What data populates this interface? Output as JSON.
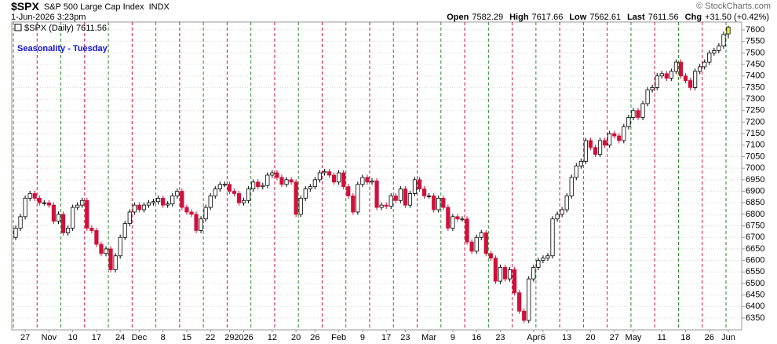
{
  "header": {
    "symbol": "$SPX",
    "name": "S&P 500 Large Cap Index",
    "exchange": "INDX",
    "timestamp": "1-Jun-2026 3:23pm",
    "quote": [
      {
        "label": "Open",
        "value": "7582.29"
      },
      {
        "label": "High",
        "value": "7617.66"
      },
      {
        "label": "Low",
        "value": "7562.61"
      },
      {
        "label": "Last",
        "value": "7611.56"
      },
      {
        "label": "Chg",
        "value": "+31.50 (+0.42%)"
      }
    ],
    "credit": "© StockCharts.com"
  },
  "chart_data": {
    "type": "candlestick",
    "title": "Seasonality - Tuesday",
    "legend": "$SPX (Daily) 7611.56",
    "categories": [
      null,
      null,
      "27",
      null,
      null,
      null,
      null,
      "Nov",
      null,
      null,
      null,
      null,
      "10",
      null,
      null,
      null,
      null,
      "17",
      null,
      null,
      null,
      null,
      "24",
      null,
      null,
      null,
      "Dec",
      null,
      null,
      null,
      null,
      "8",
      null,
      null,
      null,
      null,
      "15",
      null,
      null,
      null,
      null,
      "22",
      null,
      null,
      null,
      "29",
      null,
      null,
      "2026",
      null,
      null,
      null,
      null,
      null,
      "12",
      null,
      null,
      null,
      null,
      "20",
      null,
      null,
      null,
      "26",
      null,
      null,
      null,
      null,
      "Feb",
      null,
      null,
      null,
      null,
      "9",
      null,
      null,
      null,
      null,
      "17",
      null,
      null,
      null,
      "23",
      null,
      null,
      null,
      null,
      "Mar",
      null,
      null,
      null,
      null,
      "9",
      null,
      null,
      null,
      null,
      "16",
      null,
      null,
      null,
      null,
      "23",
      null,
      null,
      null,
      null,
      null,
      null,
      "Apr",
      null,
      "6",
      null,
      null,
      null,
      null,
      "13",
      null,
      null,
      null,
      null,
      "20",
      null,
      null,
      null,
      null,
      "27",
      null,
      null,
      null,
      "May",
      null,
      null,
      null,
      null,
      null,
      "11",
      null,
      null,
      null,
      null,
      "18",
      null,
      null,
      null,
      null,
      "26",
      null,
      null,
      null,
      "Jun"
    ],
    "open": [
      6700,
      6740,
      6790,
      6870,
      6890,
      6870,
      6850,
      6850,
      6840,
      6770,
      6800,
      6720,
      6740,
      6830,
      6840,
      6860,
      6740,
      6730,
      6670,
      6630,
      6650,
      6560,
      6620,
      6700,
      6760,
      6810,
      6840,
      6820,
      6840,
      6850,
      6855,
      6870,
      6840,
      6845,
      6880,
      6900,
      6830,
      6810,
      6800,
      6730,
      6780,
      6830,
      6880,
      6910,
      6930,
      6930,
      6900,
      6890,
      6850,
      6860,
      6910,
      6940,
      6920,
      6925,
      6970,
      6980,
      6960,
      6930,
      6950,
      6940,
      6800,
      6870,
      6910,
      6920,
      6950,
      6980,
      6985,
      6970,
      6940,
      6980,
      6920,
      6880,
      6810,
      6930,
      6960,
      6940,
      6945,
      6830,
      6840,
      6835,
      6880,
      6860,
      6910,
      6840,
      6890,
      6950,
      6910,
      6880,
      6880,
      6820,
      6870,
      6830,
      6740,
      6790,
      6780,
      6780,
      6680,
      6640,
      6700,
      6720,
      6630,
      6610,
      6510,
      6570,
      6520,
      6560,
      6460,
      6380,
      6340,
      6520,
      6570,
      6600,
      6610,
      6620,
      6780,
      6800,
      6820,
      6880,
      6960,
      7010,
      7030,
      7120,
      7090,
      7060,
      7120,
      7100,
      7150,
      7140,
      7120,
      7180,
      7220,
      7250,
      7220,
      7280,
      7340,
      7350,
      7400,
      7410,
      7390,
      7420,
      7460,
      7400,
      7380,
      7350,
      7420,
      7440,
      7460,
      7500,
      7510,
      7530,
      7582.29
    ],
    "high": [
      6752,
      6802,
      6882,
      6902,
      6902,
      6882,
      6862,
      6862,
      6852,
      6812,
      6812,
      6752,
      6842,
      6852,
      6872,
      6872,
      6752,
      6742,
      6682,
      6662,
      6662,
      6632,
      6712,
      6772,
      6822,
      6852,
      6852,
      6852,
      6862,
      6867,
      6882,
      6882,
      6857,
      6892,
      6912,
      6912,
      6842,
      6822,
      6812,
      6792,
      6842,
      6892,
      6922,
      6942,
      6942,
      6942,
      6912,
      6902,
      6872,
      6922,
      6952,
      6952,
      6937,
      6982,
      6992,
      6992,
      6972,
      6962,
      6962,
      6952,
      6882,
      6922,
      6932,
      6962,
      6992,
      6997,
      6997,
      6982,
      6992,
      6992,
      6932,
      6892,
      6942,
      6972,
      6972,
      6957,
      6957,
      6852,
      6852,
      6892,
      6892,
      6922,
      6922,
      6902,
      6962,
      6962,
      6922,
      6892,
      6892,
      6882,
      6882,
      6842,
      6802,
      6802,
      6792,
      6792,
      6692,
      6712,
      6732,
      6732,
      6642,
      6622,
      6582,
      6582,
      6572,
      6572,
      6472,
      6392,
      6532,
      6582,
      6612,
      6622,
      6632,
      6792,
      6812,
      6832,
      6892,
      6972,
      7022,
      7042,
      7132,
      7132,
      7102,
      7132,
      7132,
      7162,
      7162,
      7152,
      7192,
      7232,
      7262,
      7262,
      7292,
      7352,
      7362,
      7412,
      7422,
      7422,
      7432,
      7472,
      7472,
      7412,
      7392,
      7432,
      7452,
      7472,
      7512,
      7522,
      7542,
      7592,
      7617.66
    ],
    "low": [
      6688,
      6728,
      6778,
      6858,
      6858,
      6838,
      6838,
      6828,
      6758,
      6758,
      6708,
      6708,
      6728,
      6818,
      6828,
      6728,
      6718,
      6658,
      6618,
      6618,
      6548,
      6548,
      6608,
      6688,
      6748,
      6798,
      6808,
      6808,
      6828,
      6838,
      6843,
      6828,
      6828,
      6833,
      6868,
      6818,
      6798,
      6788,
      6718,
      6718,
      6768,
      6818,
      6868,
      6898,
      6918,
      6888,
      6878,
      6838,
      6838,
      6848,
      6898,
      6908,
      6908,
      6913,
      6958,
      6948,
      6918,
      6918,
      6928,
      6788,
      6788,
      6858,
      6898,
      6908,
      6938,
      6968,
      6958,
      6928,
      6928,
      6908,
      6868,
      6798,
      6798,
      6918,
      6928,
      6928,
      6818,
      6818,
      6823,
      6823,
      6848,
      6848,
      6828,
      6828,
      6878,
      6898,
      6868,
      6868,
      6808,
      6808,
      6818,
      6728,
      6728,
      6768,
      6768,
      6668,
      6628,
      6628,
      6688,
      6618,
      6598,
      6498,
      6498,
      6508,
      6508,
      6448,
      6368,
      6328,
      6328,
      6508,
      6558,
      6588,
      6598,
      6608,
      6768,
      6788,
      6808,
      6868,
      6948,
      6998,
      7018,
      7078,
      7048,
      7048,
      7088,
      7088,
      7128,
      7108,
      7108,
      7168,
      7208,
      7208,
      7208,
      7268,
      7328,
      7338,
      7388,
      7378,
      7378,
      7408,
      7388,
      7368,
      7338,
      7338,
      7408,
      7428,
      7448,
      7488,
      7498,
      7518,
      7562.61
    ],
    "close": [
      6740,
      6790,
      6870,
      6890,
      6870,
      6850,
      6850,
      6840,
      6770,
      6800,
      6720,
      6740,
      6830,
      6840,
      6860,
      6740,
      6730,
      6670,
      6630,
      6650,
      6560,
      6620,
      6700,
      6760,
      6810,
      6840,
      6820,
      6840,
      6850,
      6855,
      6870,
      6840,
      6845,
      6880,
      6900,
      6830,
      6810,
      6800,
      6730,
      6780,
      6830,
      6880,
      6910,
      6930,
      6930,
      6900,
      6890,
      6850,
      6860,
      6910,
      6940,
      6920,
      6925,
      6970,
      6980,
      6960,
      6930,
      6950,
      6940,
      6800,
      6870,
      6910,
      6920,
      6950,
      6980,
      6985,
      6970,
      6940,
      6980,
      6920,
      6880,
      6810,
      6930,
      6960,
      6940,
      6945,
      6830,
      6840,
      6835,
      6880,
      6860,
      6910,
      6840,
      6890,
      6950,
      6910,
      6880,
      6880,
      6820,
      6870,
      6830,
      6740,
      6790,
      6780,
      6780,
      6680,
      6640,
      6700,
      6720,
      6630,
      6610,
      6510,
      6570,
      6520,
      6560,
      6460,
      6380,
      6340,
      6520,
      6570,
      6600,
      6610,
      6620,
      6780,
      6800,
      6820,
      6880,
      6960,
      7010,
      7030,
      7120,
      7090,
      7060,
      7120,
      7100,
      7150,
      7140,
      7120,
      7180,
      7220,
      7250,
      7220,
      7280,
      7340,
      7350,
      7400,
      7410,
      7390,
      7420,
      7460,
      7400,
      7380,
      7350,
      7420,
      7440,
      7460,
      7500,
      7510,
      7530,
      7580,
      7611.56
    ],
    "up_color": "#ffffff",
    "down_color": "#d0103a",
    "base_color": "#000000",
    "ylim": [
      6299,
      7634
    ],
    "yticks": [
      6350,
      6400,
      6450,
      6500,
      6550,
      6600,
      6650,
      6700,
      6750,
      6800,
      6850,
      6900,
      6950,
      7000,
      7050,
      7100,
      7150,
      7200,
      7250,
      7300,
      7350,
      7400,
      7450,
      7500,
      7550,
      7600
    ],
    "grid": true
  }
}
